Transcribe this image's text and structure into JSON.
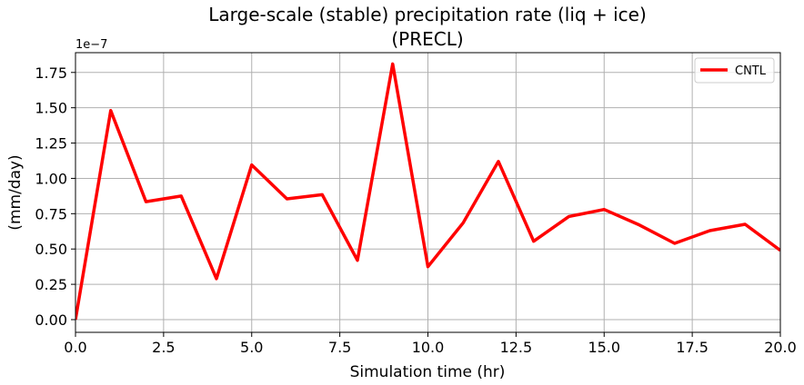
{
  "chart_data": {
    "type": "line",
    "title_line1": "Large-scale (stable) precipitation rate (liq + ice)",
    "title_line2": "(PRECL)",
    "xlabel": "Simulation time (hr)",
    "ylabel": "(mm/day)",
    "y_offset_label": "1e−7",
    "xlim": [
      0,
      20
    ],
    "ylim": [
      -0.09,
      1.89
    ],
    "x_ticks": [
      0,
      2.5,
      5,
      7.5,
      10,
      12.5,
      15,
      17.5,
      20
    ],
    "x_tick_labels": [
      "0.0",
      "2.5",
      "5.0",
      "7.5",
      "10.0",
      "12.5",
      "15.0",
      "17.5",
      "20.0"
    ],
    "y_ticks": [
      0,
      0.25,
      0.5,
      0.75,
      1.0,
      1.25,
      1.5,
      1.75
    ],
    "y_tick_labels": [
      "0.00",
      "0.25",
      "0.50",
      "0.75",
      "1.00",
      "1.25",
      "1.50",
      "1.75"
    ],
    "grid": true,
    "legend_position": "top-right",
    "series": [
      {
        "name": "CNTL",
        "color": "#ff0000",
        "x": [
          0,
          1,
          2,
          3,
          4,
          5,
          6,
          7,
          8,
          9,
          10,
          11,
          12,
          13,
          14,
          15,
          16,
          17,
          18,
          19,
          20
        ],
        "values": [
          0.0,
          1.48,
          0.835,
          0.875,
          0.29,
          1.095,
          0.855,
          0.885,
          0.42,
          1.81,
          0.375,
          0.685,
          1.12,
          0.555,
          0.73,
          0.78,
          0.67,
          0.54,
          0.63,
          0.675,
          0.49
        ]
      }
    ]
  }
}
